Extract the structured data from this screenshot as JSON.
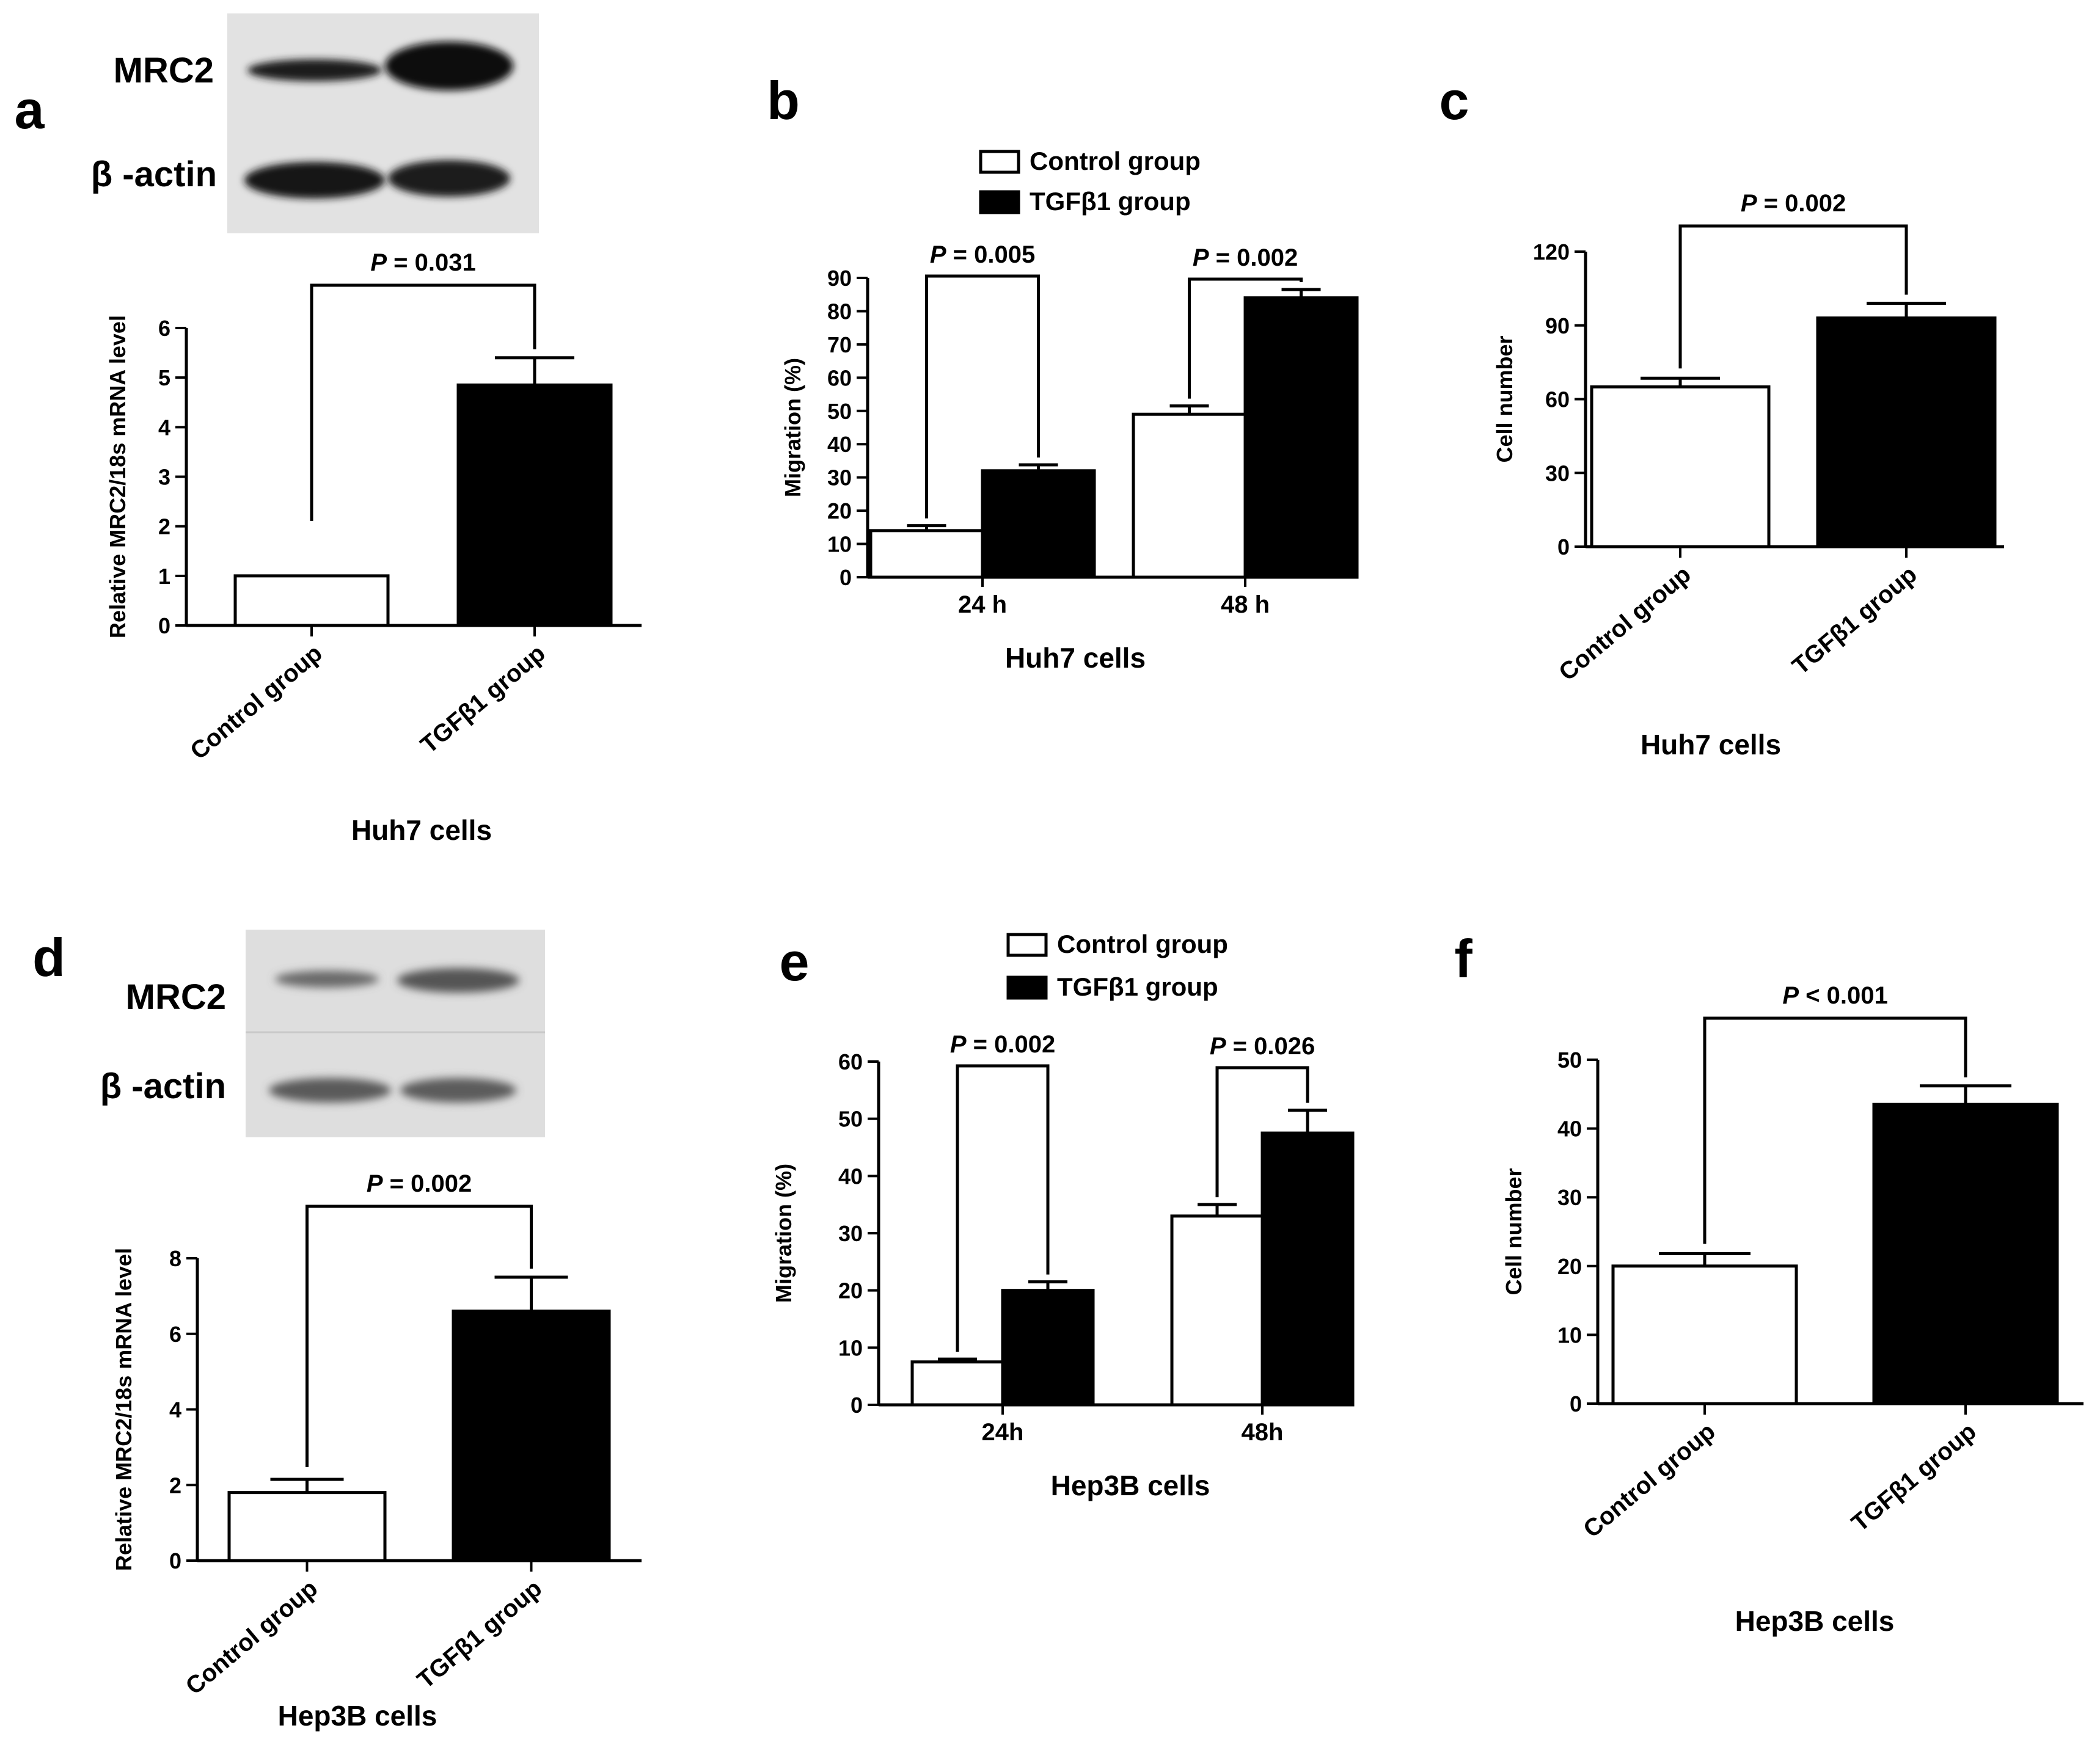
{
  "figure": {
    "background": "#ffffff",
    "control_fill": "#ffffff",
    "tgf_fill": "#000000"
  },
  "chart_data": [
    {
      "panel": "a",
      "type": "bar",
      "blot": {
        "labels": [
          "MRC2",
          "β -actin"
        ]
      },
      "ylabel": "Relative MRC2/18s mRNA level",
      "ylim": [
        0,
        6
      ],
      "yticks": [
        0,
        1,
        2,
        3,
        4,
        5,
        6
      ],
      "categories": [
        "Control group",
        "TGFβ1 group"
      ],
      "values": [
        1.0,
        4.85
      ],
      "errors": [
        0,
        0.55
      ],
      "xlabel": "Huh7 cells",
      "pvalue": "= 0.031",
      "pvalue_letter": "P"
    },
    {
      "panel": "b",
      "type": "bar",
      "ylabel": "Migration (%)",
      "ylim": [
        0,
        90
      ],
      "yticks": [
        0,
        10,
        20,
        30,
        40,
        50,
        60,
        70,
        80,
        90
      ],
      "categories": [
        "24 h",
        "48 h"
      ],
      "series": [
        {
          "name": "Control group",
          "values": [
            14,
            49
          ],
          "errors": [
            1.5,
            2.5
          ]
        },
        {
          "name": "TGFβ1 group",
          "values": [
            32,
            84
          ],
          "errors": [
            1.8,
            2.5
          ]
        }
      ],
      "xlabel": "Huh7 cells",
      "pvalues": [
        "= 0.005",
        "= 0.002"
      ],
      "pvalue_letter": "P"
    },
    {
      "panel": "c",
      "type": "bar",
      "ylabel": "Cell number",
      "ylim": [
        0,
        120
      ],
      "yticks": [
        0,
        30,
        60,
        90,
        120
      ],
      "categories": [
        "Control group",
        "TGFβ1 group"
      ],
      "values": [
        65,
        93
      ],
      "errors": [
        3.5,
        6
      ],
      "xlabel": "Huh7 cells",
      "pvalue": "= 0.002",
      "pvalue_letter": "P"
    },
    {
      "panel": "d",
      "type": "bar",
      "blot": {
        "labels": [
          "MRC2",
          "β -actin"
        ]
      },
      "ylabel": "Relative MRC2/18s mRNA level",
      "ylim": [
        0,
        8
      ],
      "yticks": [
        0,
        2,
        4,
        6,
        8
      ],
      "categories": [
        "Control group",
        "TGFβ1 group"
      ],
      "values": [
        1.8,
        6.6
      ],
      "errors": [
        0.35,
        0.9
      ],
      "xlabel": "Hep3B cells",
      "pvalue": "= 0.002",
      "pvalue_letter": "P"
    },
    {
      "panel": "e",
      "type": "bar",
      "ylabel": "Migration (%)",
      "ylim": [
        0,
        60
      ],
      "yticks": [
        0,
        10,
        20,
        30,
        40,
        50,
        60
      ],
      "categories": [
        "24h",
        "48h"
      ],
      "series": [
        {
          "name": "Control group",
          "values": [
            7.5,
            33
          ],
          "errors": [
            0.5,
            2
          ]
        },
        {
          "name": "TGFβ1 group",
          "values": [
            20,
            47.5
          ],
          "errors": [
            1.5,
            4
          ]
        }
      ],
      "xlabel": "Hep3B cells",
      "pvalues": [
        "= 0.002",
        "= 0.026"
      ],
      "pvalue_letter": "P"
    },
    {
      "panel": "f",
      "type": "bar",
      "ylabel": "Cell number",
      "ylim": [
        0,
        50
      ],
      "yticks": [
        0,
        10,
        20,
        30,
        40,
        50
      ],
      "categories": [
        "Control group",
        "TGFβ1 group"
      ],
      "values": [
        20,
        43.5
      ],
      "errors": [
        1.8,
        2.7
      ],
      "xlabel": "Hep3B cells",
      "pvalue": "< 0.001",
      "pvalue_letter": "P"
    }
  ]
}
